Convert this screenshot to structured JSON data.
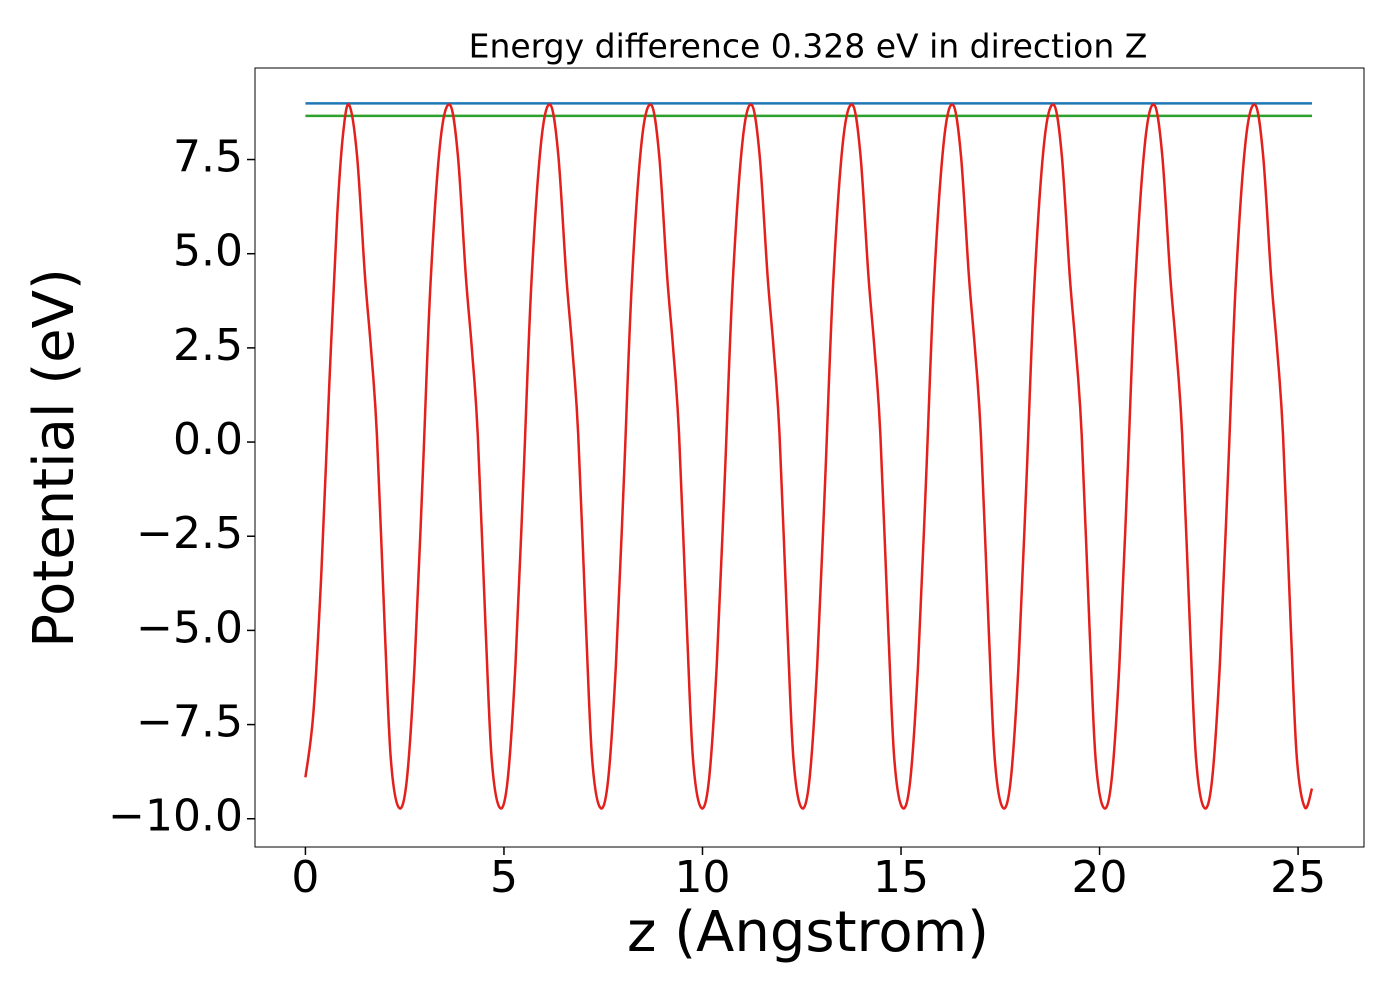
{
  "chart_data": {
    "type": "line",
    "title": "Energy difference 0.328 eV in direction Z",
    "xlabel": "z (Angstrom)",
    "ylabel": "Potential (eV)",
    "xlim": [
      -1.27,
      26.66
    ],
    "ylim": [
      -10.75,
      9.93
    ],
    "xticks": [
      0,
      5,
      10,
      15,
      20,
      25
    ],
    "yticks": [
      {
        "value": -10,
        "label": "−10.0"
      },
      {
        "value": -7.5,
        "label": "−7.5"
      },
      {
        "value": -5,
        "label": "−5.0"
      },
      {
        "value": -2.5,
        "label": "−2.5"
      },
      {
        "value": 0,
        "label": "0.0"
      },
      2.5,
      {
        "value": 5,
        "label": "5.0"
      },
      7.5
    ],
    "grid": false,
    "series": [
      {
        "color": "#1f77b4",
        "x": [
          0,
          25.35
        ],
        "values": [
          8.99,
          8.99
        ]
      },
      {
        "color": "#2ca02c",
        "x": [
          0,
          25.35
        ],
        "values": [
          8.66,
          8.66
        ]
      },
      {
        "color": "#e3201b",
        "x": [
          0,
          0.2,
          0.4,
          0.6,
          0.8,
          0.95,
          1.1,
          1.3,
          1.5,
          1.65,
          1.8,
          2.0,
          2.15,
          2.35,
          2.55,
          2.75,
          2.95,
          3.15,
          3.4,
          3.64,
          3.84,
          4.04,
          4.19,
          4.34,
          4.54,
          4.69,
          4.89,
          5.09,
          5.29,
          5.49,
          5.69,
          5.94,
          6.17,
          6.37,
          6.57,
          6.72,
          6.87,
          7.07,
          7.22,
          7.42,
          7.62,
          7.82,
          8.02,
          8.22,
          8.47,
          8.71,
          8.91,
          9.11,
          9.26,
          9.41,
          9.61,
          9.76,
          9.96,
          10.16,
          10.36,
          10.56,
          10.76,
          11.01,
          11.24,
          11.44,
          11.64,
          11.79,
          11.94,
          12.14,
          12.29,
          12.49,
          12.69,
          12.89,
          13.09,
          13.29,
          13.54,
          13.78,
          13.98,
          14.18,
          14.33,
          14.48,
          14.68,
          14.83,
          15.03,
          15.23,
          15.43,
          15.63,
          15.83,
          16.08,
          16.31,
          16.51,
          16.71,
          16.86,
          17.01,
          17.21,
          17.36,
          17.56,
          17.76,
          17.96,
          18.16,
          18.36,
          18.61,
          18.85,
          19.05,
          19.25,
          19.4,
          19.55,
          19.75,
          19.9,
          20.1,
          20.3,
          20.5,
          20.7,
          20.9,
          21.15,
          21.38,
          21.58,
          21.78,
          21.93,
          22.08,
          22.28,
          22.43,
          22.63,
          22.83,
          23.03,
          23.23,
          23.43,
          23.68,
          23.92,
          24.12,
          24.32,
          24.47,
          24.62,
          24.82,
          24.97,
          25.17,
          25.35
        ],
        "values": [
          -8.9,
          -7.2,
          -3.5,
          1.5,
          6.0,
          8.2,
          8.95,
          7.6,
          4.4,
          2.5,
          0.2,
          -5.0,
          -8.4,
          -9.7,
          -9.0,
          -5.9,
          -1.0,
          4.2,
          8.0,
          8.95,
          7.6,
          4.4,
          2.5,
          0.2,
          -5.0,
          -8.4,
          -9.7,
          -9.0,
          -5.9,
          -1.0,
          4.2,
          8.0,
          8.95,
          7.6,
          4.4,
          2.5,
          0.2,
          -5.0,
          -8.4,
          -9.7,
          -9.0,
          -5.9,
          -1.0,
          4.2,
          8.0,
          8.95,
          7.6,
          4.4,
          2.5,
          0.2,
          -5.0,
          -8.4,
          -9.7,
          -9.0,
          -5.9,
          -1.0,
          4.2,
          8.0,
          8.95,
          7.6,
          4.4,
          2.5,
          0.2,
          -5.0,
          -8.4,
          -9.7,
          -9.0,
          -5.9,
          -1.0,
          4.2,
          8.0,
          8.95,
          7.6,
          4.4,
          2.5,
          0.2,
          -5.0,
          -8.4,
          -9.7,
          -9.0,
          -5.9,
          -1.0,
          4.2,
          8.0,
          8.95,
          7.6,
          4.4,
          2.5,
          0.2,
          -5.0,
          -8.4,
          -9.7,
          -9.0,
          -5.9,
          -1.0,
          4.2,
          8.0,
          8.95,
          7.6,
          4.4,
          2.5,
          0.2,
          -5.0,
          -8.4,
          -9.7,
          -9.0,
          -5.9,
          -1.0,
          4.2,
          8.0,
          8.95,
          7.6,
          4.4,
          2.5,
          0.2,
          -5.0,
          -8.4,
          -9.7,
          -9.0,
          -5.9,
          -1.0,
          4.2,
          8.0,
          8.95,
          7.6,
          4.4,
          2.5,
          0.2,
          -5.0,
          -8.4,
          -9.7,
          -9.2
        ]
      }
    ]
  }
}
